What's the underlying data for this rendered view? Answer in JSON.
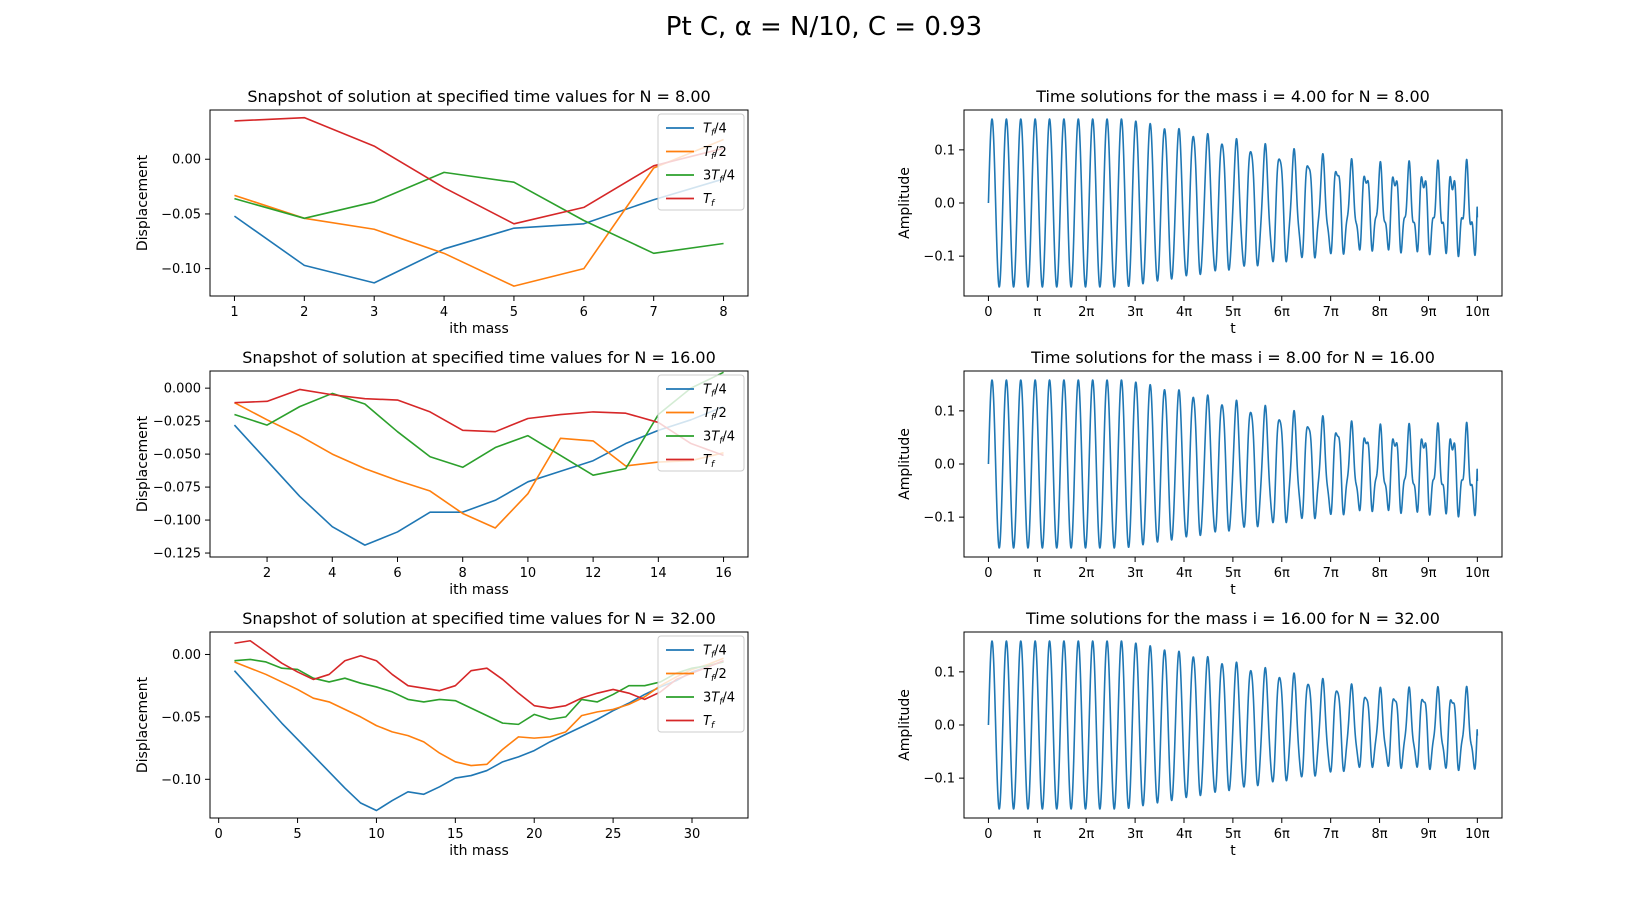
{
  "figure": {
    "suptitle": "Pt C,  α = N/10,  C = 0.93"
  },
  "chart_data": [
    {
      "type": "line",
      "title": "Snapshot of solution at specified time values for N = 8.00",
      "xlabel": "ith mass",
      "ylabel": "Displacement",
      "xlim": [
        0.65,
        8.35
      ],
      "ylim": [
        -0.125,
        0.045
      ],
      "xticks": [
        1,
        2,
        3,
        4,
        5,
        6,
        7,
        8
      ],
      "xtick_labels": [
        "1",
        "2",
        "3",
        "4",
        "5",
        "6",
        "7",
        "8"
      ],
      "yticks": [
        -0.1,
        -0.05,
        0.0
      ],
      "ytick_labels": [
        "−0.10",
        "−0.05",
        "0.00"
      ],
      "legend": "top-right",
      "x": [
        1,
        2,
        3,
        4,
        5,
        6,
        7,
        8
      ],
      "series": [
        {
          "name": "T_f/4",
          "label_main": "T",
          "label_sub": "f",
          "label_suffix": "/4",
          "color": "#1f77b4",
          "values": [
            -0.052,
            -0.097,
            -0.113,
            -0.082,
            -0.063,
            -0.059,
            -0.037,
            -0.018
          ]
        },
        {
          "name": "T_f/2",
          "label_main": "T",
          "label_sub": "f",
          "label_suffix": "/2",
          "color": "#ff7f0e",
          "values": [
            -0.033,
            -0.054,
            -0.064,
            -0.086,
            -0.116,
            -0.1,
            -0.008,
            0.018
          ]
        },
        {
          "name": "3T_f/4",
          "label_prefix": "3",
          "label_main": "T",
          "label_sub": "f",
          "label_suffix": "/4",
          "color": "#2ca02c",
          "values": [
            -0.036,
            -0.054,
            -0.039,
            -0.012,
            -0.021,
            -0.056,
            -0.086,
            -0.077
          ]
        },
        {
          "name": "T_f",
          "label_main": "T",
          "label_sub": "f",
          "label_suffix": "",
          "color": "#d62728",
          "values": [
            0.035,
            0.038,
            0.012,
            -0.026,
            -0.059,
            -0.044,
            -0.006,
            0.01
          ]
        }
      ]
    },
    {
      "type": "line",
      "title": "Time solutions for the mass i = 4.00 for N = 8.00",
      "xlabel": "t",
      "ylabel": "Amplitude",
      "xlim": [
        -1.57,
        33.0
      ],
      "ylim": [
        -0.175,
        0.175
      ],
      "xticks_pi_multiples": [
        0,
        1,
        2,
        3,
        4,
        5,
        6,
        7,
        8,
        9,
        10
      ],
      "xtick_labels": [
        "0",
        "π",
        "2π",
        "3π",
        "4π",
        "5π",
        "6π",
        "7π",
        "8π",
        "9π",
        "10π"
      ],
      "yticks": [
        -0.1,
        0.0,
        0.1
      ],
      "ytick_labels": [
        "−0.1",
        "0.0",
        "0.1"
      ],
      "series": [
        {
          "name": "",
          "color": "#1f77b4",
          "t_end_pi": 10,
          "cycles": 34,
          "amplitude": 0.158,
          "center_end": -0.014,
          "lower_end": -0.098,
          "ripple": 0.055,
          "final": -0.027
        }
      ]
    },
    {
      "type": "line",
      "title": "Snapshot of solution at specified time values for N = 16.00",
      "xlabel": "ith mass",
      "ylabel": "Displacement",
      "xlim": [
        0.25,
        16.75
      ],
      "ylim": [
        -0.128,
        0.013
      ],
      "xticks": [
        2,
        4,
        6,
        8,
        10,
        12,
        14,
        16
      ],
      "xtick_labels": [
        "2",
        "4",
        "6",
        "8",
        "10",
        "12",
        "14",
        "16"
      ],
      "yticks": [
        -0.125,
        -0.1,
        -0.075,
        -0.05,
        -0.025,
        0.0
      ],
      "ytick_labels": [
        "−0.125",
        "−0.100",
        "−0.075",
        "−0.050",
        "−0.025",
        "0.000"
      ],
      "legend": "top-right",
      "x": [
        1,
        2,
        3,
        4,
        5,
        6,
        7,
        8,
        9,
        10,
        11,
        12,
        13,
        14,
        15,
        16
      ],
      "series": [
        {
          "name": "T_f/4",
          "label_main": "T",
          "label_sub": "f",
          "label_suffix": "/4",
          "color": "#1f77b4",
          "values": [
            -0.028,
            -0.055,
            -0.082,
            -0.105,
            -0.119,
            -0.109,
            -0.094,
            -0.094,
            -0.085,
            -0.071,
            -0.063,
            -0.055,
            -0.042,
            -0.032,
            -0.024,
            -0.014
          ]
        },
        {
          "name": "T_f/2",
          "label_main": "T",
          "label_sub": "f",
          "label_suffix": "/2",
          "color": "#ff7f0e",
          "values": [
            -0.011,
            -0.024,
            -0.036,
            -0.05,
            -0.061,
            -0.07,
            -0.078,
            -0.095,
            -0.106,
            -0.08,
            -0.038,
            -0.04,
            -0.059,
            -0.056,
            -0.055,
            -0.049
          ]
        },
        {
          "name": "3T_f/4",
          "label_prefix": "3",
          "label_main": "T",
          "label_sub": "f",
          "label_suffix": "/4",
          "color": "#2ca02c",
          "values": [
            -0.02,
            -0.028,
            -0.014,
            -0.004,
            -0.012,
            -0.033,
            -0.052,
            -0.06,
            -0.045,
            -0.036,
            -0.051,
            -0.066,
            -0.061,
            -0.02,
            0.0,
            0.012
          ]
        },
        {
          "name": "T_f",
          "label_main": "T",
          "label_sub": "f",
          "label_suffix": "",
          "color": "#d62728",
          "values": [
            -0.011,
            -0.01,
            -0.001,
            -0.005,
            -0.008,
            -0.009,
            -0.018,
            -0.032,
            -0.033,
            -0.023,
            -0.02,
            -0.018,
            -0.019,
            -0.026,
            -0.042,
            -0.051
          ]
        }
      ]
    },
    {
      "type": "line",
      "title": "Time solutions for the mass i = 8.00 for N = 16.00",
      "xlabel": "t",
      "ylabel": "Amplitude",
      "xlim": [
        -1.57,
        33.0
      ],
      "ylim": [
        -0.175,
        0.175
      ],
      "xticks_pi_multiples": [
        0,
        1,
        2,
        3,
        4,
        5,
        6,
        7,
        8,
        9,
        10
      ],
      "xtick_labels": [
        "0",
        "π",
        "2π",
        "3π",
        "4π",
        "5π",
        "6π",
        "7π",
        "8π",
        "9π",
        "10π"
      ],
      "yticks": [
        -0.1,
        0.0,
        0.1
      ],
      "ytick_labels": [
        "−0.1",
        "0.0",
        "0.1"
      ],
      "series": [
        {
          "name": "",
          "color": "#1f77b4",
          "t_end_pi": 10,
          "cycles": 34,
          "amplitude": 0.158,
          "center_end": -0.015,
          "lower_end": -0.098,
          "ripple": 0.05,
          "final": -0.032
        }
      ]
    },
    {
      "type": "line",
      "title": "Snapshot of solution at specified time values for N = 32.00",
      "xlabel": "ith mass",
      "ylabel": "Displacement",
      "xlim": [
        -0.55,
        33.55
      ],
      "ylim": [
        -0.131,
        0.018
      ],
      "xticks": [
        0,
        5,
        10,
        15,
        20,
        25,
        30
      ],
      "xtick_labels": [
        "0",
        "5",
        "10",
        "15",
        "20",
        "25",
        "30"
      ],
      "yticks": [
        -0.1,
        -0.05,
        0.0
      ],
      "ytick_labels": [
        "−0.10",
        "−0.05",
        "0.00"
      ],
      "legend": "top-right",
      "x": [
        1,
        2,
        3,
        4,
        5,
        6,
        7,
        8,
        9,
        10,
        11,
        12,
        13,
        14,
        15,
        16,
        17,
        18,
        19,
        20,
        21,
        22,
        23,
        24,
        25,
        26,
        27,
        28,
        29,
        30,
        31,
        32
      ],
      "series": [
        {
          "name": "T_f/4",
          "label_main": "T",
          "label_sub": "f",
          "label_suffix": "/4",
          "color": "#1f77b4",
          "values": [
            -0.013,
            -0.027,
            -0.041,
            -0.055,
            -0.068,
            -0.081,
            -0.094,
            -0.107,
            -0.119,
            -0.125,
            -0.117,
            -0.11,
            -0.112,
            -0.106,
            -0.099,
            -0.097,
            -0.093,
            -0.086,
            -0.082,
            -0.077,
            -0.07,
            -0.064,
            -0.058,
            -0.052,
            -0.045,
            -0.039,
            -0.032,
            -0.026,
            -0.021,
            -0.014,
            -0.01,
            -0.005
          ]
        },
        {
          "name": "T_f/2",
          "label_main": "T",
          "label_sub": "f",
          "label_suffix": "/2",
          "color": "#ff7f0e",
          "values": [
            -0.006,
            -0.011,
            -0.016,
            -0.022,
            -0.028,
            -0.035,
            -0.038,
            -0.044,
            -0.05,
            -0.057,
            -0.062,
            -0.065,
            -0.07,
            -0.079,
            -0.086,
            -0.089,
            -0.088,
            -0.076,
            -0.066,
            -0.067,
            -0.066,
            -0.062,
            -0.049,
            -0.046,
            -0.044,
            -0.04,
            -0.034,
            -0.025,
            -0.018,
            -0.012,
            -0.008,
            -0.003
          ]
        },
        {
          "name": "3T_f/4",
          "label_prefix": "3",
          "label_main": "T",
          "label_sub": "f",
          "label_suffix": "/4",
          "color": "#2ca02c",
          "values": [
            -0.005,
            -0.004,
            -0.006,
            -0.011,
            -0.012,
            -0.019,
            -0.022,
            -0.019,
            -0.023,
            -0.026,
            -0.03,
            -0.036,
            -0.038,
            -0.036,
            -0.037,
            -0.043,
            -0.049,
            -0.055,
            -0.056,
            -0.048,
            -0.052,
            -0.05,
            -0.036,
            -0.038,
            -0.032,
            -0.025,
            -0.025,
            -0.022,
            -0.015,
            -0.011,
            -0.009,
            -0.006
          ]
        },
        {
          "name": "T_f",
          "label_main": "T",
          "label_sub": "f",
          "label_suffix": "",
          "color": "#d62728",
          "values": [
            0.009,
            0.011,
            0.002,
            -0.007,
            -0.014,
            -0.02,
            -0.016,
            -0.005,
            -0.001,
            -0.005,
            -0.016,
            -0.025,
            -0.027,
            -0.029,
            -0.025,
            -0.013,
            -0.011,
            -0.02,
            -0.031,
            -0.041,
            -0.043,
            -0.041,
            -0.035,
            -0.031,
            -0.028,
            -0.031,
            -0.036,
            -0.03,
            -0.02,
            -0.015,
            -0.01,
            -0.005
          ]
        }
      ]
    },
    {
      "type": "line",
      "title": "Time solutions for the mass i = 16.00 for N = 32.00",
      "xlabel": "t",
      "ylabel": "Amplitude",
      "xlim": [
        -1.57,
        33.0
      ],
      "ylim": [
        -0.175,
        0.175
      ],
      "xticks_pi_multiples": [
        0,
        1,
        2,
        3,
        4,
        5,
        6,
        7,
        8,
        9,
        10
      ],
      "xtick_labels": [
        "0",
        "π",
        "2π",
        "3π",
        "4π",
        "5π",
        "6π",
        "7π",
        "8π",
        "9π",
        "10π"
      ],
      "yticks": [
        -0.1,
        0.0,
        0.1
      ],
      "ytick_labels": [
        "−0.1",
        "0.0",
        "0.1"
      ],
      "series": [
        {
          "name": "",
          "color": "#1f77b4",
          "t_end_pi": 10,
          "cycles": 34,
          "amplitude": 0.158,
          "center_end": -0.01,
          "lower_end": -0.06,
          "ripple": 0.03,
          "final": -0.02
        }
      ]
    }
  ]
}
